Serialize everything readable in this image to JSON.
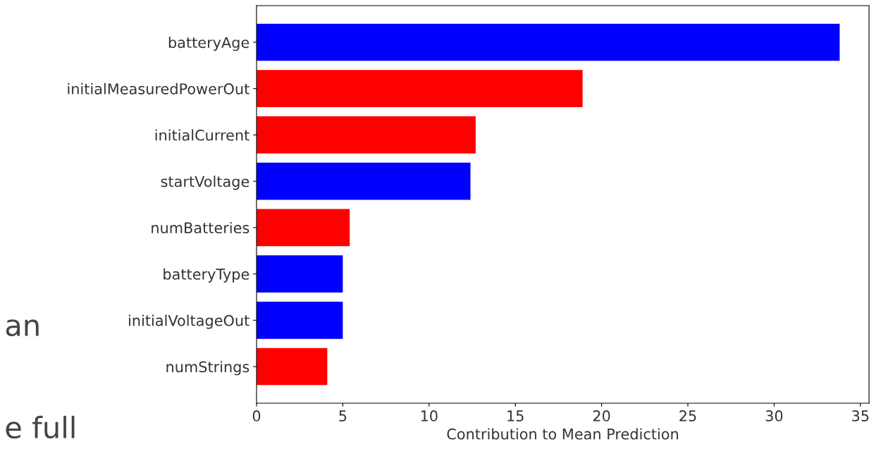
{
  "chart_data": {
    "type": "bar",
    "orientation": "horizontal",
    "xlabel": "Contribution to Mean Prediction",
    "categories": [
      "batteryAge",
      "initialMeasuredPowerOut",
      "initialCurrent",
      "startVoltage",
      "numBatteries",
      "batteryType",
      "initialVoltageOut",
      "numStrings"
    ],
    "values": [
      33.8,
      18.9,
      12.7,
      12.4,
      5.4,
      5.0,
      5.0,
      4.1
    ],
    "colors": [
      "#0000ff",
      "#ff0000",
      "#ff0000",
      "#0000ff",
      "#ff0000",
      "#0000ff",
      "#0000ff",
      "#ff0000"
    ],
    "xlim": [
      0,
      35.5
    ],
    "xticks": [
      0,
      5,
      10,
      15,
      20,
      25,
      30,
      35
    ],
    "grid": false,
    "legend": false,
    "annotations": [
      "an",
      "e full"
    ]
  }
}
